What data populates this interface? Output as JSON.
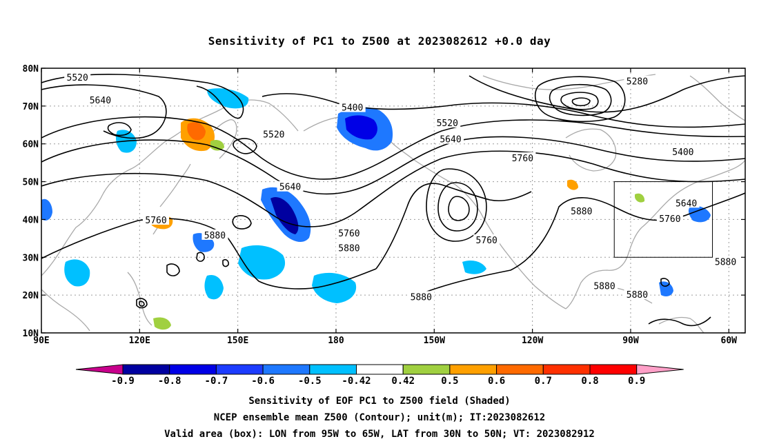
{
  "title": "Sensitivity of PC1 to Z500 at 2023082612 +0.0 day",
  "map": {
    "lon_range": [
      90,
      305
    ],
    "lat_range": [
      10,
      80
    ],
    "lat_ticks": [
      {
        "value": 80,
        "label": "80N"
      },
      {
        "value": 70,
        "label": "70N"
      },
      {
        "value": 60,
        "label": "60N"
      },
      {
        "value": 50,
        "label": "50N"
      },
      {
        "value": 40,
        "label": "40N"
      },
      {
        "value": 30,
        "label": "30N"
      },
      {
        "value": 20,
        "label": "20N"
      },
      {
        "value": 10,
        "label": "10N"
      }
    ],
    "lon_ticks": [
      {
        "value": 90,
        "label": "90E"
      },
      {
        "value": 120,
        "label": "120E"
      },
      {
        "value": 150,
        "label": "150E"
      },
      {
        "value": 180,
        "label": "180"
      },
      {
        "value": 210,
        "label": "150W"
      },
      {
        "value": 240,
        "label": "120W"
      },
      {
        "value": 270,
        "label": "90W"
      },
      {
        "value": 300,
        "label": "60W"
      }
    ],
    "valid_box": {
      "lon": [
        265,
        295
      ],
      "lat": [
        30,
        50
      ]
    },
    "contour_labels": [
      {
        "text": "5520",
        "lon": 101,
        "lat": 77.6
      },
      {
        "text": "5640",
        "lon": 108,
        "lat": 71.6
      },
      {
        "text": "5400",
        "lon": 185,
        "lat": 69.7
      },
      {
        "text": "5280",
        "lon": 272,
        "lat": 76.6
      },
      {
        "text": "5520",
        "lon": 161,
        "lat": 62.6
      },
      {
        "text": "5520",
        "lon": 214,
        "lat": 65.6
      },
      {
        "text": "5640",
        "lon": 215,
        "lat": 61.3
      },
      {
        "text": "5760",
        "lon": 237,
        "lat": 56.3
      },
      {
        "text": "5400",
        "lon": 286,
        "lat": 57.9
      },
      {
        "text": "5640",
        "lon": 166,
        "lat": 48.7
      },
      {
        "text": "5640",
        "lon": 287,
        "lat": 44.4
      },
      {
        "text": "5880",
        "lon": 255,
        "lat": 42.3
      },
      {
        "text": "5760",
        "lon": 282,
        "lat": 40.3
      },
      {
        "text": "5760",
        "lon": 125,
        "lat": 39.9
      },
      {
        "text": "5880",
        "lon": 143,
        "lat": 35.9
      },
      {
        "text": "5760",
        "lon": 184,
        "lat": 36.4
      },
      {
        "text": "5760",
        "lon": 226,
        "lat": 34.6
      },
      {
        "text": "5880",
        "lon": 184,
        "lat": 32.5
      },
      {
        "text": "5880",
        "lon": 299,
        "lat": 28.9
      },
      {
        "text": "5880",
        "lon": 262,
        "lat": 22.5
      },
      {
        "text": "5880",
        "lon": 272,
        "lat": 20.2
      },
      {
        "text": "5880",
        "lon": 206,
        "lat": 19.6
      }
    ]
  },
  "colorbar": {
    "labels": [
      "-0.9",
      "-0.8",
      "-0.7",
      "-0.6",
      "-0.5",
      "-0.42",
      "0.42",
      "0.5",
      "0.6",
      "0.7",
      "0.8",
      "0.9"
    ],
    "colors": [
      "#0000a0",
      "#0000e6",
      "#1c3cff",
      "#1e78ff",
      "#00c0ff",
      "#ffffff",
      "#a0d040",
      "#ffa000",
      "#ff6a00",
      "#ff3000",
      "#ff0000"
    ],
    "low_end_color": "#c8008c",
    "high_end_color": "#ffa0c8"
  },
  "caption": {
    "line1": "Sensitivity of EOF PC1 to Z500 field (Shaded)",
    "line2": "NCEP ensemble mean Z500 (Contour); unit(m); IT:2023082612",
    "line3": "Valid area (box): LON from 95W to 65W, LAT from 30N to 50N; VT: 2023082912"
  }
}
